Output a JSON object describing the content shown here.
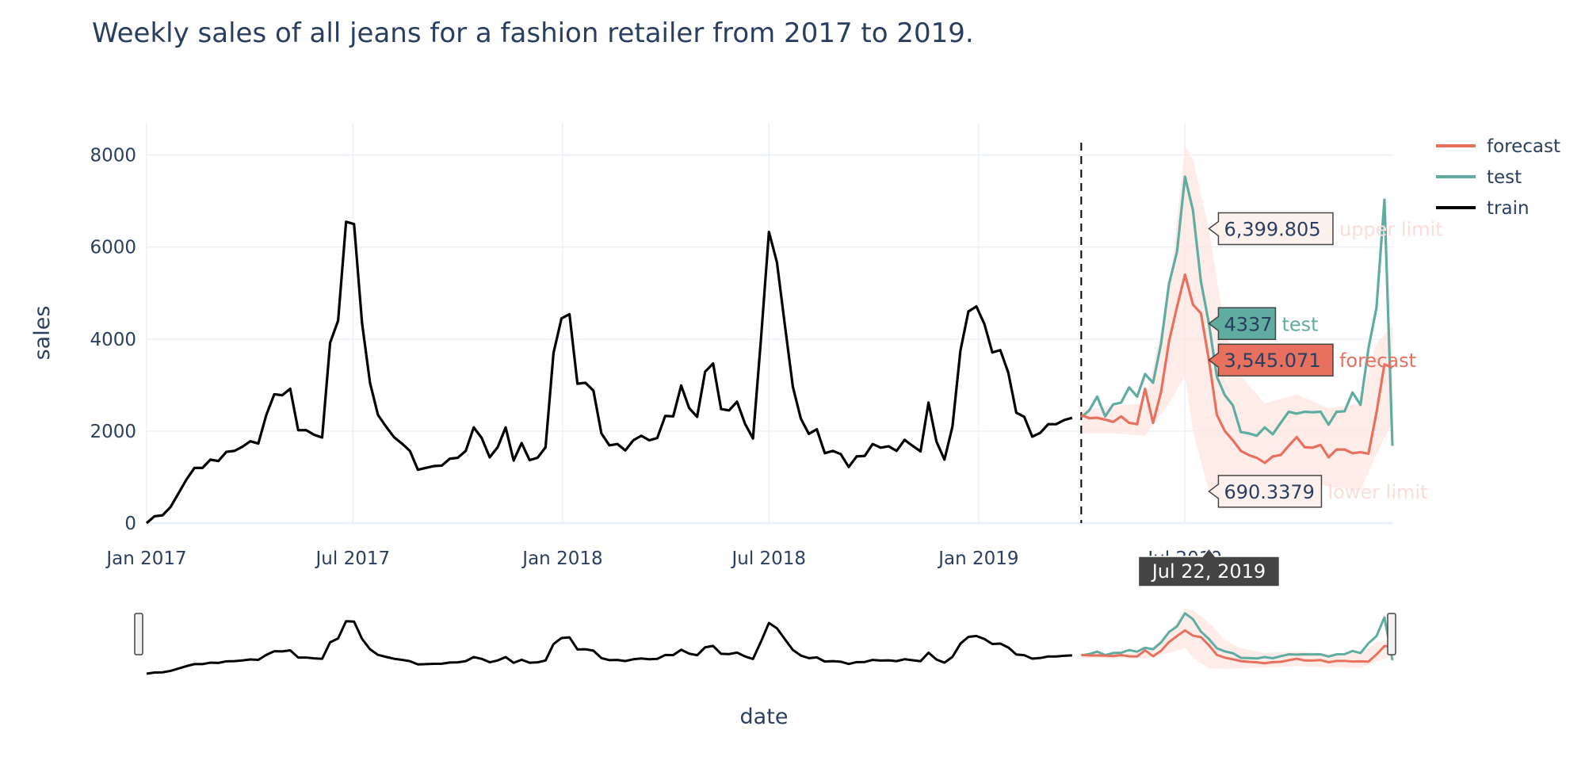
{
  "chart_data": {
    "type": "line",
    "title": "Weekly sales of all jeans for a fashion retailer from 2017 to 2019.",
    "xlabel": "date",
    "ylabel": "sales",
    "x_range": [
      "2017-01-01",
      "2019-12-30"
    ],
    "y_range": [
      0,
      8700
    ],
    "x_ticks": [
      {
        "date": "2017-01-01",
        "label": "Jan 2017"
      },
      {
        "date": "2017-07-01",
        "label": "Jul 2017"
      },
      {
        "date": "2018-01-01",
        "label": "Jan 2018"
      },
      {
        "date": "2018-07-01",
        "label": "Jul 2018"
      },
      {
        "date": "2019-01-01",
        "label": "Jan 2019"
      },
      {
        "date": "2019-07-01",
        "label": "Jul 2019"
      }
    ],
    "y_ticks": [
      0,
      2000,
      4000,
      6000,
      8000
    ],
    "grid": true,
    "legend_position": "top-right",
    "split_date": "2019-04-01",
    "colors": {
      "forecast": "#e8705f",
      "test": "#60aca0",
      "train": "#000000",
      "band": "#fde5e1"
    },
    "series": [
      {
        "name": "train",
        "color": "#000000",
        "points": [
          [
            "2017-01-01",
            0
          ],
          [
            "2017-01-08",
            150
          ],
          [
            "2017-01-15",
            170
          ],
          [
            "2017-01-22",
            350
          ],
          [
            "2017-01-29",
            650
          ],
          [
            "2017-02-05",
            950
          ],
          [
            "2017-02-12",
            1200
          ],
          [
            "2017-02-19",
            1200
          ],
          [
            "2017-02-26",
            1380
          ],
          [
            "2017-03-05",
            1350
          ],
          [
            "2017-03-12",
            1550
          ],
          [
            "2017-03-19",
            1570
          ],
          [
            "2017-03-26",
            1660
          ],
          [
            "2017-04-02",
            1780
          ],
          [
            "2017-04-09",
            1730
          ],
          [
            "2017-04-16",
            2350
          ],
          [
            "2017-04-23",
            2800
          ],
          [
            "2017-04-30",
            2780
          ],
          [
            "2017-05-07",
            2920
          ],
          [
            "2017-05-14",
            2020
          ],
          [
            "2017-05-21",
            2020
          ],
          [
            "2017-05-28",
            1920
          ],
          [
            "2017-06-04",
            1860
          ],
          [
            "2017-06-11",
            3920
          ],
          [
            "2017-06-18",
            4400
          ],
          [
            "2017-06-25",
            6550
          ],
          [
            "2017-07-02",
            6500
          ],
          [
            "2017-07-09",
            4350
          ],
          [
            "2017-07-16",
            3050
          ],
          [
            "2017-07-23",
            2350
          ],
          [
            "2017-07-30",
            2100
          ],
          [
            "2017-08-06",
            1870
          ],
          [
            "2017-08-13",
            1730
          ],
          [
            "2017-08-20",
            1570
          ],
          [
            "2017-08-27",
            1160
          ],
          [
            "2017-09-03",
            1200
          ],
          [
            "2017-09-10",
            1240
          ],
          [
            "2017-09-17",
            1250
          ],
          [
            "2017-09-24",
            1400
          ],
          [
            "2017-10-01",
            1420
          ],
          [
            "2017-10-08",
            1570
          ],
          [
            "2017-10-15",
            2080
          ],
          [
            "2017-10-22",
            1850
          ],
          [
            "2017-10-29",
            1430
          ],
          [
            "2017-11-05",
            1650
          ],
          [
            "2017-11-12",
            2080
          ],
          [
            "2017-11-19",
            1360
          ],
          [
            "2017-11-26",
            1740
          ],
          [
            "2017-12-03",
            1370
          ],
          [
            "2017-12-10",
            1420
          ],
          [
            "2017-12-17",
            1650
          ],
          [
            "2017-12-24",
            3700
          ],
          [
            "2017-12-31",
            4450
          ],
          [
            "2018-01-07",
            4540
          ],
          [
            "2018-01-14",
            3030
          ],
          [
            "2018-01-21",
            3050
          ],
          [
            "2018-01-28",
            2880
          ],
          [
            "2018-02-04",
            1950
          ],
          [
            "2018-02-11",
            1690
          ],
          [
            "2018-02-18",
            1720
          ],
          [
            "2018-02-25",
            1580
          ],
          [
            "2018-03-04",
            1800
          ],
          [
            "2018-03-11",
            1900
          ],
          [
            "2018-03-18",
            1800
          ],
          [
            "2018-03-25",
            1850
          ],
          [
            "2018-04-01",
            2330
          ],
          [
            "2018-04-08",
            2320
          ],
          [
            "2018-04-15",
            2990
          ],
          [
            "2018-04-22",
            2500
          ],
          [
            "2018-04-29",
            2310
          ],
          [
            "2018-05-06",
            3290
          ],
          [
            "2018-05-13",
            3470
          ],
          [
            "2018-05-20",
            2480
          ],
          [
            "2018-05-27",
            2450
          ],
          [
            "2018-06-03",
            2640
          ],
          [
            "2018-06-10",
            2160
          ],
          [
            "2018-06-17",
            1840
          ],
          [
            "2018-06-24",
            4000
          ],
          [
            "2018-07-01",
            6330
          ],
          [
            "2018-07-08",
            5670
          ],
          [
            "2018-07-15",
            4300
          ],
          [
            "2018-07-22",
            2960
          ],
          [
            "2018-07-29",
            2270
          ],
          [
            "2018-08-05",
            1940
          ],
          [
            "2018-08-12",
            2040
          ],
          [
            "2018-08-19",
            1520
          ],
          [
            "2018-08-26",
            1570
          ],
          [
            "2018-09-02",
            1500
          ],
          [
            "2018-09-09",
            1220
          ],
          [
            "2018-09-16",
            1450
          ],
          [
            "2018-09-23",
            1460
          ],
          [
            "2018-09-30",
            1720
          ],
          [
            "2018-10-07",
            1640
          ],
          [
            "2018-10-14",
            1670
          ],
          [
            "2018-10-21",
            1570
          ],
          [
            "2018-10-28",
            1810
          ],
          [
            "2018-11-04",
            1680
          ],
          [
            "2018-11-11",
            1560
          ],
          [
            "2018-11-18",
            2620
          ],
          [
            "2018-11-25",
            1770
          ],
          [
            "2018-12-02",
            1380
          ],
          [
            "2018-12-09",
            2100
          ],
          [
            "2018-12-16",
            3750
          ],
          [
            "2018-12-23",
            4600
          ],
          [
            "2018-12-30",
            4710
          ],
          [
            "2019-01-06",
            4330
          ],
          [
            "2019-01-13",
            3710
          ],
          [
            "2019-01-20",
            3760
          ],
          [
            "2019-01-27",
            3270
          ],
          [
            "2019-02-03",
            2400
          ],
          [
            "2019-02-10",
            2310
          ],
          [
            "2019-02-17",
            1880
          ],
          [
            "2019-02-24",
            1960
          ],
          [
            "2019-03-03",
            2150
          ],
          [
            "2019-03-10",
            2150
          ],
          [
            "2019-03-17",
            2240
          ],
          [
            "2019-03-24",
            2290
          ]
        ]
      },
      {
        "name": "test",
        "color": "#60aca0",
        "points": [
          [
            "2019-04-01",
            2300
          ],
          [
            "2019-04-08",
            2450
          ],
          [
            "2019-04-15",
            2750
          ],
          [
            "2019-04-22",
            2320
          ],
          [
            "2019-04-29",
            2580
          ],
          [
            "2019-05-06",
            2620
          ],
          [
            "2019-05-13",
            2950
          ],
          [
            "2019-05-20",
            2750
          ],
          [
            "2019-05-27",
            3240
          ],
          [
            "2019-06-03",
            3050
          ],
          [
            "2019-06-10",
            3900
          ],
          [
            "2019-06-17",
            5200
          ],
          [
            "2019-06-24",
            5900
          ],
          [
            "2019-07-01",
            7530
          ],
          [
            "2019-07-08",
            6800
          ],
          [
            "2019-07-15",
            5250
          ],
          [
            "2019-07-22",
            4337
          ],
          [
            "2019-07-29",
            3180
          ],
          [
            "2019-08-05",
            2780
          ],
          [
            "2019-08-12",
            2560
          ],
          [
            "2019-08-19",
            1980
          ],
          [
            "2019-08-26",
            1950
          ],
          [
            "2019-09-02",
            1900
          ],
          [
            "2019-09-09",
            2080
          ],
          [
            "2019-09-16",
            1930
          ],
          [
            "2019-09-23",
            2180
          ],
          [
            "2019-09-30",
            2420
          ],
          [
            "2019-10-07",
            2380
          ],
          [
            "2019-10-14",
            2420
          ],
          [
            "2019-10-21",
            2410
          ],
          [
            "2019-10-28",
            2420
          ],
          [
            "2019-11-04",
            2140
          ],
          [
            "2019-11-11",
            2420
          ],
          [
            "2019-11-18",
            2430
          ],
          [
            "2019-11-25",
            2840
          ],
          [
            "2019-12-02",
            2570
          ],
          [
            "2019-12-09",
            3800
          ],
          [
            "2019-12-16",
            4680
          ],
          [
            "2019-12-23",
            7030
          ],
          [
            "2019-12-30",
            1680
          ]
        ]
      },
      {
        "name": "forecast",
        "color": "#e8705f",
        "points": [
          [
            "2019-04-01",
            2350
          ],
          [
            "2019-04-08",
            2280
          ],
          [
            "2019-04-15",
            2290
          ],
          [
            "2019-04-22",
            2250
          ],
          [
            "2019-04-29",
            2200
          ],
          [
            "2019-05-06",
            2320
          ],
          [
            "2019-05-13",
            2180
          ],
          [
            "2019-05-20",
            2150
          ],
          [
            "2019-05-27",
            2920
          ],
          [
            "2019-06-03",
            2180
          ],
          [
            "2019-06-10",
            2850
          ],
          [
            "2019-06-17",
            3950
          ],
          [
            "2019-06-24",
            4700
          ],
          [
            "2019-07-01",
            5400
          ],
          [
            "2019-07-08",
            4750
          ],
          [
            "2019-07-15",
            4560
          ],
          [
            "2019-07-22",
            3545.071
          ],
          [
            "2019-07-29",
            2350
          ],
          [
            "2019-08-05",
            2000
          ],
          [
            "2019-08-12",
            1800
          ],
          [
            "2019-08-19",
            1570
          ],
          [
            "2019-08-26",
            1480
          ],
          [
            "2019-09-02",
            1420
          ],
          [
            "2019-09-09",
            1310
          ],
          [
            "2019-09-16",
            1450
          ],
          [
            "2019-09-23",
            1480
          ],
          [
            "2019-09-30",
            1680
          ],
          [
            "2019-10-07",
            1870
          ],
          [
            "2019-10-14",
            1650
          ],
          [
            "2019-10-21",
            1640
          ],
          [
            "2019-10-28",
            1700
          ],
          [
            "2019-11-04",
            1430
          ],
          [
            "2019-11-11",
            1600
          ],
          [
            "2019-11-18",
            1600
          ],
          [
            "2019-11-25",
            1520
          ],
          [
            "2019-12-02",
            1540
          ],
          [
            "2019-12-09",
            1510
          ],
          [
            "2019-12-16",
            2400
          ],
          [
            "2019-12-23",
            3450
          ],
          [
            "2019-12-30",
            3380
          ]
        ]
      }
    ],
    "bounds": {
      "dates": [
        "2019-04-01",
        "2019-04-29",
        "2019-05-27",
        "2019-06-17",
        "2019-07-01",
        "2019-07-08",
        "2019-07-22",
        "2019-08-05",
        "2019-08-19",
        "2019-09-09",
        "2019-10-07",
        "2019-11-04",
        "2019-12-02",
        "2019-12-16",
        "2019-12-30"
      ],
      "upper": [
        2450,
        2550,
        2600,
        5000,
        8200,
        7900,
        6399.805,
        4200,
        3200,
        2600,
        2800,
        2500,
        2600,
        3900,
        4300
      ],
      "lower": [
        1950,
        1950,
        1900,
        2600,
        3200,
        2000,
        690.3379,
        600,
        650,
        750,
        950,
        800,
        700,
        1500,
        2200
      ]
    },
    "hover": {
      "date_label": "Jul 22, 2019",
      "upper_value": "6,399.805",
      "upper_name": "upper limit",
      "test_value": "4337",
      "test_name": "test",
      "forecast_value": "3,545.071",
      "forecast_name": "forecast",
      "lower_value": "690.3379",
      "lower_name": "lower limit"
    }
  }
}
